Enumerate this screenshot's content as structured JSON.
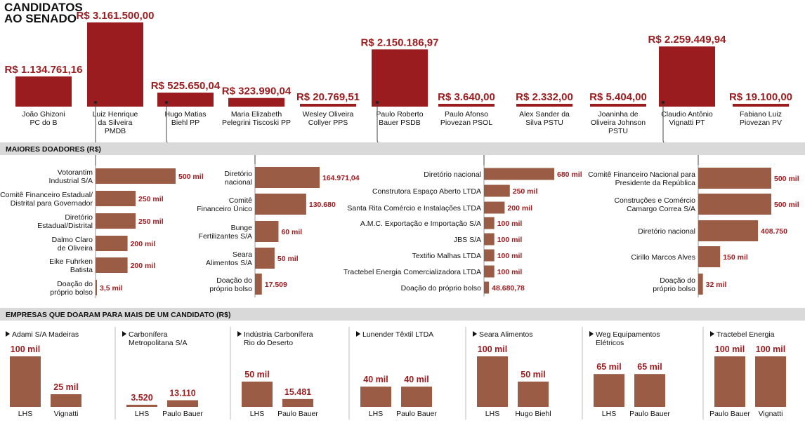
{
  "title_lines": [
    "CANDIDATOS",
    "AO SENADO"
  ],
  "colors": {
    "candidate_bar": "#9a1c1f",
    "donor_bar": "#9b5c45",
    "value_text": "#9a1c1f",
    "band": "#d9d9d9",
    "line": "#444444"
  },
  "chart_data": [
    {
      "type": "bar",
      "id": "candidates",
      "categories": [
        "João Ghizoni PC do B",
        "Luiz Henrique da Silveira PMDB",
        "Hugo Matias Biehl PP",
        "Maria Elizabeth Pelegrini Tiscoski PP",
        "Wesley Oliveira Collyer PPS",
        "Paulo Roberto Bauer PSDB",
        "Paulo Afonso Piovezan PSOL",
        "Alex Sander da Silva PSTU",
        "Joaninha de Oliveira Johnson PSTU",
        "Claudio Antônio Vignatti PT",
        "Fabiano Luiz Piovezan PV"
      ],
      "values": [
        1134761.16,
        3161500.0,
        525650.04,
        323990.04,
        20769.51,
        2150186.97,
        3640.0,
        2332.0,
        5404.0,
        2259449.94,
        19100.0
      ],
      "candidates": [
        {
          "amount": "R$ 1.134.761,16",
          "name_lines": [
            "João Ghizoni",
            "PC do B"
          ]
        },
        {
          "amount": "R$ 3.161.500,00",
          "name_lines": [
            "Luiz Henrique",
            "da Silveira",
            "PMDB"
          ]
        },
        {
          "amount": "R$ 525.650,04",
          "name_lines": [
            "Hugo Matias",
            "Biehl PP"
          ]
        },
        {
          "amount": "R$ 323.990,04",
          "name_lines": [
            "Maria Elizabeth",
            "Pelegrini Tiscoski PP"
          ]
        },
        {
          "amount": "R$ 20.769,51",
          "name_lines": [
            "Wesley Oliveira",
            "Collyer PPS"
          ]
        },
        {
          "amount": "R$ 2.150.186,97",
          "name_lines": [
            "Paulo Roberto",
            "Bauer PSDB"
          ]
        },
        {
          "amount": "R$ 3.640,00",
          "name_lines": [
            "Paulo Afonso",
            "Piovezan PSOL"
          ]
        },
        {
          "amount": "R$ 2.332,00",
          "name_lines": [
            "Alex Sander da",
            "Silva PSTU"
          ]
        },
        {
          "amount": "R$ 5.404,00",
          "name_lines": [
            "Joaninha de",
            "Oliveira Johnson",
            "PSTU"
          ]
        },
        {
          "amount": "R$ 2.259.449,94",
          "name_lines": [
            "Claudio Antônio",
            "Vignatti PT"
          ]
        },
        {
          "amount": "R$ 19.100,00",
          "name_lines": [
            "Fabiano Luiz",
            "Piovezan PV"
          ]
        }
      ]
    },
    {
      "type": "bar",
      "id": "donors",
      "title": "MAIORES DOADORES (R$)",
      "groups": [
        {
          "candidate": "Luiz Henrique da Silveira PMDB",
          "donors": [
            {
              "label_lines": [
                "Votorantim",
                "Industrial S/A"
              ],
              "value": 500000,
              "label": "500 mil"
            },
            {
              "label_lines": [
                "Comitê Financeiro Estadual/",
                "Distrital para Governador"
              ],
              "value": 250000,
              "label": "250 mil"
            },
            {
              "label_lines": [
                "Diretório",
                "Estadual/Distrital"
              ],
              "value": 250000,
              "label": "250 mil"
            },
            {
              "label_lines": [
                "Dalmo Claro",
                "de Oliveira"
              ],
              "value": 200000,
              "label": "200 mil"
            },
            {
              "label_lines": [
                "Eike Fuhrken",
                "Batista"
              ],
              "value": 200000,
              "label": "200 mil"
            },
            {
              "label_lines": [
                "Doação do",
                "próprio bolso"
              ],
              "value": 3500,
              "label": "3,5 mil"
            }
          ]
        },
        {
          "candidate": "Hugo Matias Biehl PP",
          "donors": [
            {
              "label_lines": [
                "Diretório",
                "nacional"
              ],
              "value": 164971.04,
              "label": "164.971,04"
            },
            {
              "label_lines": [
                "Comitê",
                "Financeiro Único"
              ],
              "value": 130680,
              "label": "130.680"
            },
            {
              "label_lines": [
                "Bunge",
                "Fertilizantes S/A"
              ],
              "value": 60000,
              "label": "60 mil"
            },
            {
              "label_lines": [
                "Seara",
                "Alimentos S/A"
              ],
              "value": 50000,
              "label": "50 mil"
            },
            {
              "label_lines": [
                "Doação do",
                "próprio bolso"
              ],
              "value": 17509,
              "label": "17.509"
            }
          ]
        },
        {
          "candidate": "Paulo Roberto Bauer PSDB",
          "donors": [
            {
              "label_lines": [
                "Diretório nacional"
              ],
              "value": 680000,
              "label": "680 mil"
            },
            {
              "label_lines": [
                "Construtora Espaço Aberto LTDA"
              ],
              "value": 250000,
              "label": "250 mil"
            },
            {
              "label_lines": [
                "Santa Rita Comércio e Instalações LTDA"
              ],
              "value": 200000,
              "label": "200 mil"
            },
            {
              "label_lines": [
                "A.M.C. Exportação e Importação S/A"
              ],
              "value": 100000,
              "label": "100 mil"
            },
            {
              "label_lines": [
                "JBS S/A"
              ],
              "value": 100000,
              "label": "100 mil"
            },
            {
              "label_lines": [
                "Textifio Malhas LTDA"
              ],
              "value": 100000,
              "label": "100 mil"
            },
            {
              "label_lines": [
                "Tractebel Energia Comercializadora LTDA"
              ],
              "value": 100000,
              "label": "100 mil"
            },
            {
              "label_lines": [
                "Doação do próprio bolso"
              ],
              "value": 48680.78,
              "label": "48.680,78"
            }
          ]
        },
        {
          "candidate": "Claudio Antônio Vignatti PT",
          "donors": [
            {
              "label_lines": [
                "Comitê Financeiro Nacional para",
                "Presidente da República"
              ],
              "value": 500000,
              "label": "500 mil"
            },
            {
              "label_lines": [
                "Construções e Comércio",
                "Camargo Correa S/A"
              ],
              "value": 500000,
              "label": "500 mil"
            },
            {
              "label_lines": [
                "Diretório nacional"
              ],
              "value": 408750,
              "label": "408.750"
            },
            {
              "label_lines": [
                "Cirillo Marcos Alves"
              ],
              "value": 150000,
              "label": "150 mil"
            },
            {
              "label_lines": [
                "Doação do",
                "próprio bolso"
              ],
              "value": 32000,
              "label": "32 mil"
            }
          ]
        }
      ]
    },
    {
      "type": "bar",
      "id": "companies",
      "title": "EMPRESAS QUE DOARAM PARA MAIS DE UM CANDIDATO (R$)",
      "panels": [
        {
          "company_lines": [
            "Adami S/A Madeiras"
          ],
          "categories": [
            "LHS",
            "Vignatti"
          ],
          "values": [
            100000,
            25000
          ],
          "labels": [
            "100 mil",
            "25 mil"
          ]
        },
        {
          "company_lines": [
            "Carbonífera",
            "Metropolitana S/A"
          ],
          "categories": [
            "LHS",
            "Paulo Bauer"
          ],
          "values": [
            3520,
            13110
          ],
          "labels": [
            "3.520",
            "13.110"
          ]
        },
        {
          "company_lines": [
            "Indústria Carbonífera",
            "Rio do Deserto"
          ],
          "categories": [
            "LHS",
            "Paulo Bauer"
          ],
          "values": [
            50000,
            15481
          ],
          "labels": [
            "50 mil",
            "15.481"
          ]
        },
        {
          "company_lines": [
            "Lunender Têxtil LTDA"
          ],
          "categories": [
            "LHS",
            "Paulo Bauer"
          ],
          "values": [
            40000,
            40000
          ],
          "labels": [
            "40 mil",
            "40 mil"
          ]
        },
        {
          "company_lines": [
            "Seara Alimentos"
          ],
          "categories": [
            "LHS",
            "Hugo Biehl"
          ],
          "values": [
            100000,
            50000
          ],
          "labels": [
            "100 mil",
            "50 mil"
          ]
        },
        {
          "company_lines": [
            "Weg Equipamentos",
            "Elétricos"
          ],
          "categories": [
            "LHS",
            "Paulo Bauer"
          ],
          "values": [
            65000,
            65000
          ],
          "labels": [
            "65 mil",
            "65 mil"
          ]
        },
        {
          "company_lines": [
            "Tractebel Energia"
          ],
          "categories": [
            "Paulo Bauer",
            "Vignatti"
          ],
          "values": [
            100000,
            100000
          ],
          "labels": [
            "100 mil",
            "100 mil"
          ]
        }
      ]
    }
  ]
}
